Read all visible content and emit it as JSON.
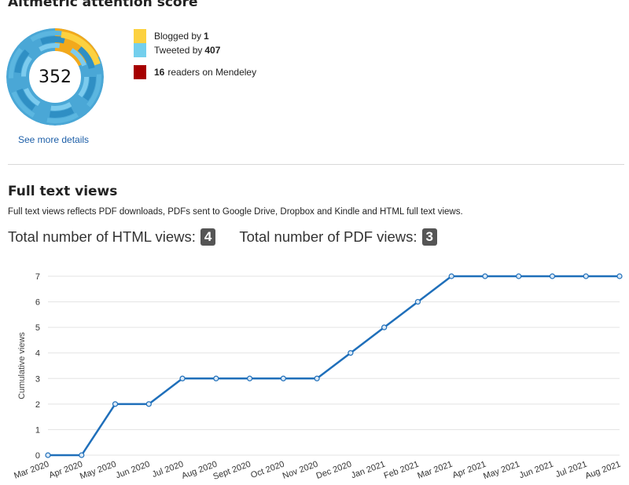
{
  "altmetric": {
    "title": "Altmetric attention score",
    "score": "352",
    "legend": [
      {
        "label": "Blogged by",
        "count": "1",
        "color": "#fcd140"
      },
      {
        "label": "Tweeted by",
        "count": "407",
        "color": "#74cfed"
      }
    ],
    "mendeley": {
      "count": "16",
      "label": "readers on Mendeley",
      "color": "#a60000"
    },
    "details_link": "See more details"
  },
  "views": {
    "title": "Full text views",
    "description": "Full text views reflects PDF downloads, PDFs sent to Google Drive, Dropbox and Kindle and HTML full text views.",
    "html_label": "Total number of HTML views:",
    "html_count": "4",
    "pdf_label": "Total number of PDF views:",
    "pdf_count": "3"
  },
  "chart_data": {
    "type": "line",
    "ylabel": "Cumulative views",
    "ylim": [
      0,
      7
    ],
    "yticks": [
      0,
      1,
      2,
      3,
      4,
      5,
      6,
      7
    ],
    "categories": [
      "Mar 2020",
      "Apr 2020",
      "May 2020",
      "Jun 2020",
      "Jul 2020",
      "Aug 2020",
      "Sept 2020",
      "Oct 2020",
      "Nov 2020",
      "Dec 2020",
      "Jan 2021",
      "Feb 2021",
      "Mar 2021",
      "Apr 2021",
      "May 2021",
      "Jun 2021",
      "Jul 2021",
      "Aug 2021"
    ],
    "values": [
      0,
      0,
      2,
      2,
      3,
      3,
      3,
      3,
      3,
      4,
      5,
      6,
      7,
      7,
      7,
      7,
      7,
      7
    ],
    "color": "#1f6fba",
    "grid": true
  }
}
